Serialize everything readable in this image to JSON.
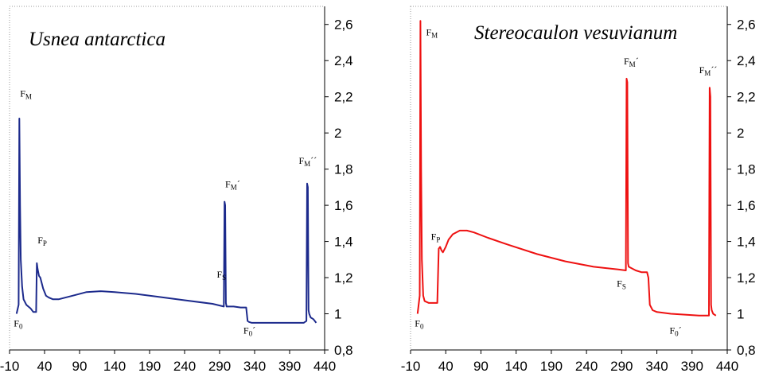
{
  "chart_data": [
    {
      "type": "line",
      "title": "Usnea antarctica",
      "color": "#1c2a8c",
      "xlim": [
        -10,
        440
      ],
      "ylim": [
        0.8,
        2.7
      ],
      "xticks": [
        "-10",
        "40",
        "90",
        "140",
        "190",
        "240",
        "290",
        "340",
        "390",
        "440"
      ],
      "yticks": [
        "0,8",
        "1",
        "1,2",
        "1,4",
        "1,6",
        "1,8",
        "2",
        "2,2",
        "2,4",
        "2,6"
      ],
      "series": [
        {
          "x": [
            0,
            3,
            4,
            5,
            6,
            8,
            10,
            14,
            20,
            24,
            28,
            29,
            30,
            32,
            34,
            38,
            42,
            46,
            52,
            60,
            80,
            100,
            120,
            140,
            170,
            200,
            240,
            280,
            296,
            297,
            298,
            299,
            300,
            310,
            320,
            328,
            330,
            332,
            336,
            350,
            380,
            410,
            414,
            415,
            416,
            417,
            418,
            420,
            424,
            428
          ],
          "values": [
            1.0,
            1.05,
            2.08,
            1.6,
            1.3,
            1.15,
            1.08,
            1.05,
            1.03,
            1.01,
            1.01,
            1.28,
            1.25,
            1.21,
            1.2,
            1.14,
            1.1,
            1.09,
            1.08,
            1.08,
            1.1,
            1.12,
            1.125,
            1.12,
            1.11,
            1.095,
            1.075,
            1.055,
            1.04,
            1.62,
            1.6,
            1.06,
            1.04,
            1.04,
            1.035,
            1.035,
            0.96,
            0.955,
            0.95,
            0.95,
            0.95,
            0.95,
            0.96,
            1.72,
            1.7,
            1.02,
            1.0,
            0.98,
            0.97,
            0.95
          ]
        }
      ],
      "annotations": [
        {
          "x": 5,
          "y": 2.2,
          "main": "F",
          "sub": "M",
          "prime": ""
        },
        {
          "x": 30,
          "y": 1.39,
          "main": "F",
          "sub": "P",
          "prime": ""
        },
        {
          "x": 286,
          "y": 1.2,
          "main": "F",
          "sub": "S",
          "prime": ""
        },
        {
          "x": 298,
          "y": 1.7,
          "main": "F",
          "sub": "M",
          "prime": "´"
        },
        {
          "x": 403,
          "y": 1.83,
          "main": "F",
          "sub": "M",
          "prime": "´´"
        },
        {
          "x": -4,
          "y": 0.93,
          "main": "F",
          "sub": "0",
          "prime": ""
        },
        {
          "x": 324,
          "y": 0.89,
          "main": "F",
          "sub": "0",
          "prime": "´"
        }
      ]
    },
    {
      "type": "line",
      "title": "Stereocaulon vesuvianum",
      "color": "#ee1111",
      "xlim": [
        -10,
        440
      ],
      "ylim": [
        0.8,
        2.7
      ],
      "xticks": [
        "-10",
        "40",
        "90",
        "140",
        "190",
        "240",
        "290",
        "340",
        "390",
        "440"
      ],
      "yticks": [
        "0,8",
        "1",
        "1,2",
        "1,4",
        "1,6",
        "1,8",
        "2",
        "2,2",
        "2,4",
        "2,6"
      ],
      "series": [
        {
          "x": [
            0,
            3,
            4,
            5,
            6,
            8,
            10,
            16,
            24,
            28,
            30,
            32,
            34,
            36,
            40,
            44,
            50,
            60,
            70,
            80,
            100,
            130,
            170,
            210,
            250,
            285,
            296,
            297,
            298,
            299,
            300,
            310,
            318,
            326,
            328,
            330,
            334,
            340,
            360,
            400,
            410,
            414,
            415,
            416,
            417,
            418,
            420,
            424
          ],
          "values": [
            1.0,
            1.1,
            2.62,
            1.8,
            1.3,
            1.1,
            1.07,
            1.06,
            1.06,
            1.06,
            1.36,
            1.37,
            1.35,
            1.34,
            1.37,
            1.41,
            1.44,
            1.46,
            1.46,
            1.45,
            1.42,
            1.38,
            1.33,
            1.29,
            1.26,
            1.245,
            1.24,
            2.3,
            2.28,
            1.28,
            1.26,
            1.24,
            1.23,
            1.23,
            1.2,
            1.05,
            1.02,
            1.01,
            1.0,
            0.99,
            0.99,
            0.99,
            2.25,
            2.2,
            1.05,
            1.02,
            1.0,
            0.99
          ]
        }
      ],
      "annotations": [
        {
          "x": 12,
          "y": 2.54,
          "main": "F",
          "sub": "M",
          "prime": ""
        },
        {
          "x": 19,
          "y": 1.41,
          "main": "F",
          "sub": "P",
          "prime": ""
        },
        {
          "x": 283,
          "y": 1.15,
          "main": "F",
          "sub": "S",
          "prime": ""
        },
        {
          "x": 293,
          "y": 2.38,
          "main": "F",
          "sub": "M",
          "prime": "´"
        },
        {
          "x": 400,
          "y": 2.33,
          "main": "F",
          "sub": "M",
          "prime": "´´"
        },
        {
          "x": -4,
          "y": 0.93,
          "main": "F",
          "sub": "0",
          "prime": ""
        },
        {
          "x": 358,
          "y": 0.89,
          "main": "F",
          "sub": "0",
          "prime": "´"
        }
      ]
    }
  ]
}
